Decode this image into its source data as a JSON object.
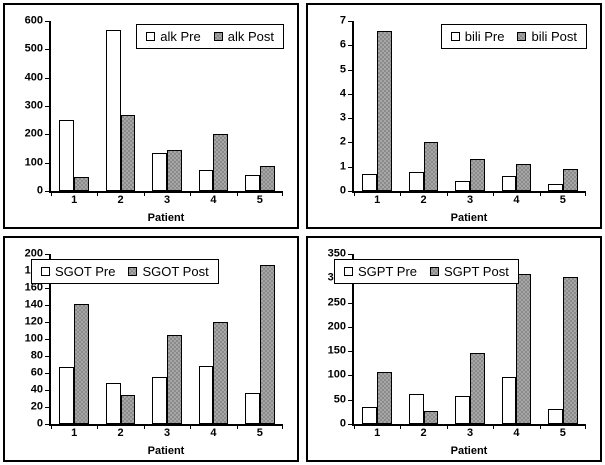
{
  "page": {
    "background": "#ffffff"
  },
  "colors": {
    "bar_border": "#000000",
    "pre_fill": "#ffffff",
    "post_fill": "#999999",
    "post_fill_checker_light": "#a6a6a6",
    "post_fill_checker_dark": "#8b8b8b",
    "axis": "#000000",
    "text": "#000000"
  },
  "chart_data": [
    {
      "type": "bar",
      "categories": [
        "1",
        "2",
        "3",
        "4",
        "5"
      ],
      "series": [
        {
          "name": "alk Pre",
          "fill": "white",
          "values": [
            250,
            570,
            135,
            75,
            57
          ]
        },
        {
          "name": "alk Post",
          "fill": "gray-checker",
          "values": [
            50,
            270,
            145,
            200,
            87
          ]
        }
      ],
      "title": "",
      "xlabel": "Patient",
      "ylabel": "",
      "ylim": [
        0,
        600
      ],
      "ytick_step": 100,
      "grid": false,
      "legend_position": "top-right"
    },
    {
      "type": "bar",
      "categories": [
        "1",
        "2",
        "3",
        "4",
        "5"
      ],
      "series": [
        {
          "name": "bili Pre",
          "fill": "white",
          "values": [
            0.7,
            0.8,
            0.4,
            0.6,
            0.3
          ]
        },
        {
          "name": "bili Post",
          "fill": "gray-checker",
          "values": [
            6.6,
            2.0,
            1.3,
            1.1,
            0.9
          ]
        }
      ],
      "title": "",
      "xlabel": "Patient",
      "ylabel": "",
      "ylim": [
        0,
        7
      ],
      "ytick_step": 1,
      "grid": false,
      "legend_position": "top-right"
    },
    {
      "type": "bar",
      "categories": [
        "1",
        "2",
        "3",
        "4",
        "5"
      ],
      "series": [
        {
          "name": "SGOT Pre",
          "fill": "white",
          "values": [
            67,
            48,
            55,
            68,
            37
          ]
        },
        {
          "name": "SGOT Post",
          "fill": "gray-checker",
          "values": [
            141,
            34,
            105,
            120,
            187
          ]
        }
      ],
      "title": "",
      "xlabel": "Patient",
      "ylabel": "",
      "ylim": [
        0,
        200
      ],
      "ytick_step": 20,
      "grid": false,
      "legend_position": "top-left"
    },
    {
      "type": "bar",
      "categories": [
        "1",
        "2",
        "3",
        "4",
        "5"
      ],
      "series": [
        {
          "name": "SGPT Pre",
          "fill": "white",
          "values": [
            35,
            62,
            58,
            97,
            30
          ]
        },
        {
          "name": "SGPT Post",
          "fill": "gray-checker",
          "values": [
            108,
            27,
            147,
            308,
            302
          ]
        }
      ],
      "title": "",
      "xlabel": "Patient",
      "ylabel": "",
      "ylim": [
        0,
        350
      ],
      "ytick_step": 50,
      "grid": false,
      "legend_position": "top-left"
    }
  ]
}
